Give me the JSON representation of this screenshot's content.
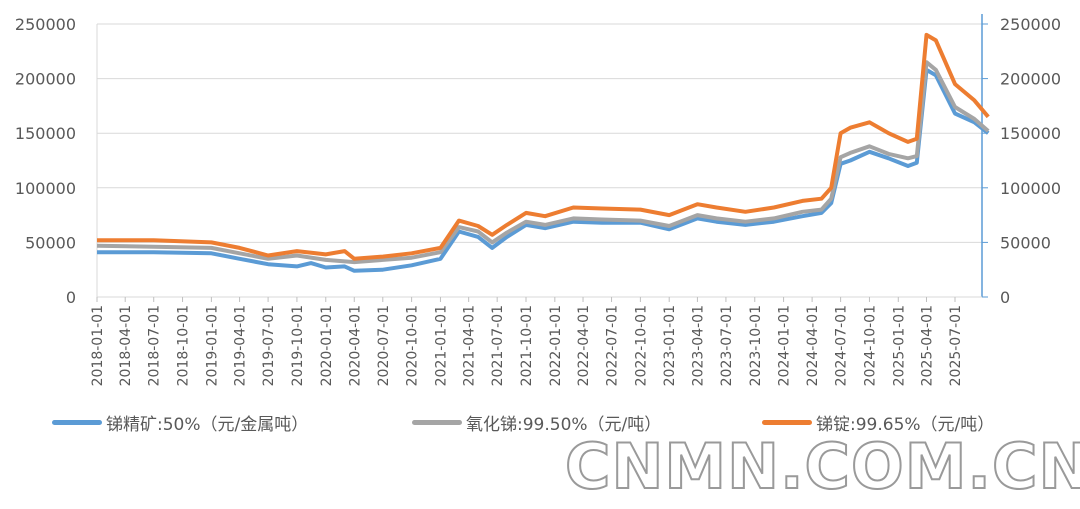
{
  "chart_data": {
    "type": "line",
    "ylim": [
      0,
      250000
    ],
    "yticks": [
      0,
      50000,
      100000,
      150000,
      200000,
      250000
    ],
    "xticks": [
      "2018-01-01",
      "2018-04-01",
      "2018-07-01",
      "2018-10-01",
      "2019-01-01",
      "2019-04-01",
      "2019-07-01",
      "2019-10-01",
      "2020-01-01",
      "2020-04-01",
      "2020-07-01",
      "2020-10-01",
      "2021-01-01",
      "2021-04-01",
      "2021-07-01",
      "2021-10-01",
      "2022-01-01",
      "2022-04-01",
      "2022-07-01",
      "2022-10-01",
      "2023-01-01",
      "2023-04-01",
      "2023-07-01",
      "2023-10-01",
      "2024-01-01",
      "2024-04-01",
      "2024-07-01",
      "2024-10-01",
      "2025-01-01",
      "2025-04-01",
      "2025-07-01"
    ],
    "grid": true,
    "legend": "bottom",
    "series": [
      {
        "name": "锑精矿:50%（元/金属吨）",
        "color": "#5b9bd5",
        "points": [
          [
            "2018-01-01",
            41000
          ],
          [
            "2018-07-01",
            41000
          ],
          [
            "2019-01-01",
            40000
          ],
          [
            "2019-04-01",
            35000
          ],
          [
            "2019-07-01",
            30000
          ],
          [
            "2019-10-01",
            28000
          ],
          [
            "2019-11-15",
            31000
          ],
          [
            "2020-01-01",
            27000
          ],
          [
            "2020-03-01",
            28000
          ],
          [
            "2020-04-01",
            24000
          ],
          [
            "2020-07-01",
            25000
          ],
          [
            "2020-10-01",
            29000
          ],
          [
            "2021-01-01",
            35000
          ],
          [
            "2021-03-01",
            60000
          ],
          [
            "2021-05-01",
            55000
          ],
          [
            "2021-06-15",
            45000
          ],
          [
            "2021-08-01",
            55000
          ],
          [
            "2021-10-01",
            66000
          ],
          [
            "2021-12-01",
            63000
          ],
          [
            "2022-03-01",
            69000
          ],
          [
            "2022-06-01",
            68000
          ],
          [
            "2022-10-01",
            68000
          ],
          [
            "2023-01-01",
            62000
          ],
          [
            "2023-04-01",
            72000
          ],
          [
            "2023-06-01",
            69000
          ],
          [
            "2023-09-01",
            66000
          ],
          [
            "2023-12-01",
            69000
          ],
          [
            "2024-03-01",
            74000
          ],
          [
            "2024-05-01",
            77000
          ],
          [
            "2024-06-01",
            86000
          ],
          [
            "2024-07-01",
            122000
          ],
          [
            "2024-08-01",
            125000
          ],
          [
            "2024-10-01",
            133000
          ],
          [
            "2024-12-01",
            127000
          ],
          [
            "2025-02-01",
            120000
          ],
          [
            "2025-03-01",
            123000
          ],
          [
            "2025-04-01",
            208000
          ],
          [
            "2025-05-01",
            203000
          ],
          [
            "2025-07-01",
            168000
          ],
          [
            "2025-09-01",
            160000
          ],
          [
            "2025-10-15",
            150000
          ]
        ]
      },
      {
        "name": "氧化锑:99.50%（元/吨）",
        "color": "#a5a5a5",
        "points": [
          [
            "2018-01-01",
            47000
          ],
          [
            "2018-07-01",
            46000
          ],
          [
            "2019-01-01",
            45000
          ],
          [
            "2019-04-01",
            40000
          ],
          [
            "2019-07-01",
            35000
          ],
          [
            "2019-10-01",
            38000
          ],
          [
            "2020-01-01",
            34000
          ],
          [
            "2020-04-01",
            32000
          ],
          [
            "2020-07-01",
            34000
          ],
          [
            "2020-10-01",
            36000
          ],
          [
            "2021-01-01",
            41000
          ],
          [
            "2021-03-01",
            64000
          ],
          [
            "2021-05-01",
            60000
          ],
          [
            "2021-06-15",
            50000
          ],
          [
            "2021-08-01",
            59000
          ],
          [
            "2021-10-01",
            69000
          ],
          [
            "2021-12-01",
            66000
          ],
          [
            "2022-03-01",
            72000
          ],
          [
            "2022-06-01",
            71000
          ],
          [
            "2022-10-01",
            70000
          ],
          [
            "2023-01-01",
            65000
          ],
          [
            "2023-04-01",
            75000
          ],
          [
            "2023-06-01",
            72000
          ],
          [
            "2023-09-01",
            69000
          ],
          [
            "2023-12-01",
            72000
          ],
          [
            "2024-03-01",
            78000
          ],
          [
            "2024-05-01",
            80000
          ],
          [
            "2024-06-01",
            90000
          ],
          [
            "2024-07-01",
            128000
          ],
          [
            "2024-08-01",
            132000
          ],
          [
            "2024-10-01",
            138000
          ],
          [
            "2024-12-01",
            131000
          ],
          [
            "2025-02-01",
            127000
          ],
          [
            "2025-03-01",
            129000
          ],
          [
            "2025-04-01",
            215000
          ],
          [
            "2025-05-01",
            208000
          ],
          [
            "2025-07-01",
            174000
          ],
          [
            "2025-09-01",
            163000
          ],
          [
            "2025-10-15",
            152000
          ]
        ]
      },
      {
        "name": "锑锭:99.65%（元/吨）",
        "color": "#ed7d31",
        "points": [
          [
            "2018-01-01",
            52000
          ],
          [
            "2018-07-01",
            52000
          ],
          [
            "2019-01-01",
            50000
          ],
          [
            "2019-04-01",
            45000
          ],
          [
            "2019-07-01",
            38000
          ],
          [
            "2019-10-01",
            42000
          ],
          [
            "2020-01-01",
            39000
          ],
          [
            "2020-03-01",
            42000
          ],
          [
            "2020-04-01",
            35000
          ],
          [
            "2020-07-01",
            37000
          ],
          [
            "2020-10-01",
            40000
          ],
          [
            "2021-01-01",
            45000
          ],
          [
            "2021-03-01",
            70000
          ],
          [
            "2021-05-01",
            65000
          ],
          [
            "2021-06-15",
            57000
          ],
          [
            "2021-08-01",
            66000
          ],
          [
            "2021-10-01",
            77000
          ],
          [
            "2021-12-01",
            74000
          ],
          [
            "2022-03-01",
            82000
          ],
          [
            "2022-06-01",
            81000
          ],
          [
            "2022-10-01",
            80000
          ],
          [
            "2023-01-01",
            75000
          ],
          [
            "2023-04-01",
            85000
          ],
          [
            "2023-06-01",
            82000
          ],
          [
            "2023-09-01",
            78000
          ],
          [
            "2023-12-01",
            82000
          ],
          [
            "2024-03-01",
            88000
          ],
          [
            "2024-05-01",
            90000
          ],
          [
            "2024-06-01",
            100000
          ],
          [
            "2024-07-01",
            150000
          ],
          [
            "2024-08-01",
            155000
          ],
          [
            "2024-10-01",
            160000
          ],
          [
            "2024-12-01",
            150000
          ],
          [
            "2025-02-01",
            142000
          ],
          [
            "2025-03-01",
            145000
          ],
          [
            "2025-04-01",
            240000
          ],
          [
            "2025-05-01",
            235000
          ],
          [
            "2025-07-01",
            195000
          ],
          [
            "2025-09-01",
            180000
          ],
          [
            "2025-10-15",
            165000
          ]
        ]
      }
    ]
  },
  "watermark": "CNMN.COM.CN"
}
